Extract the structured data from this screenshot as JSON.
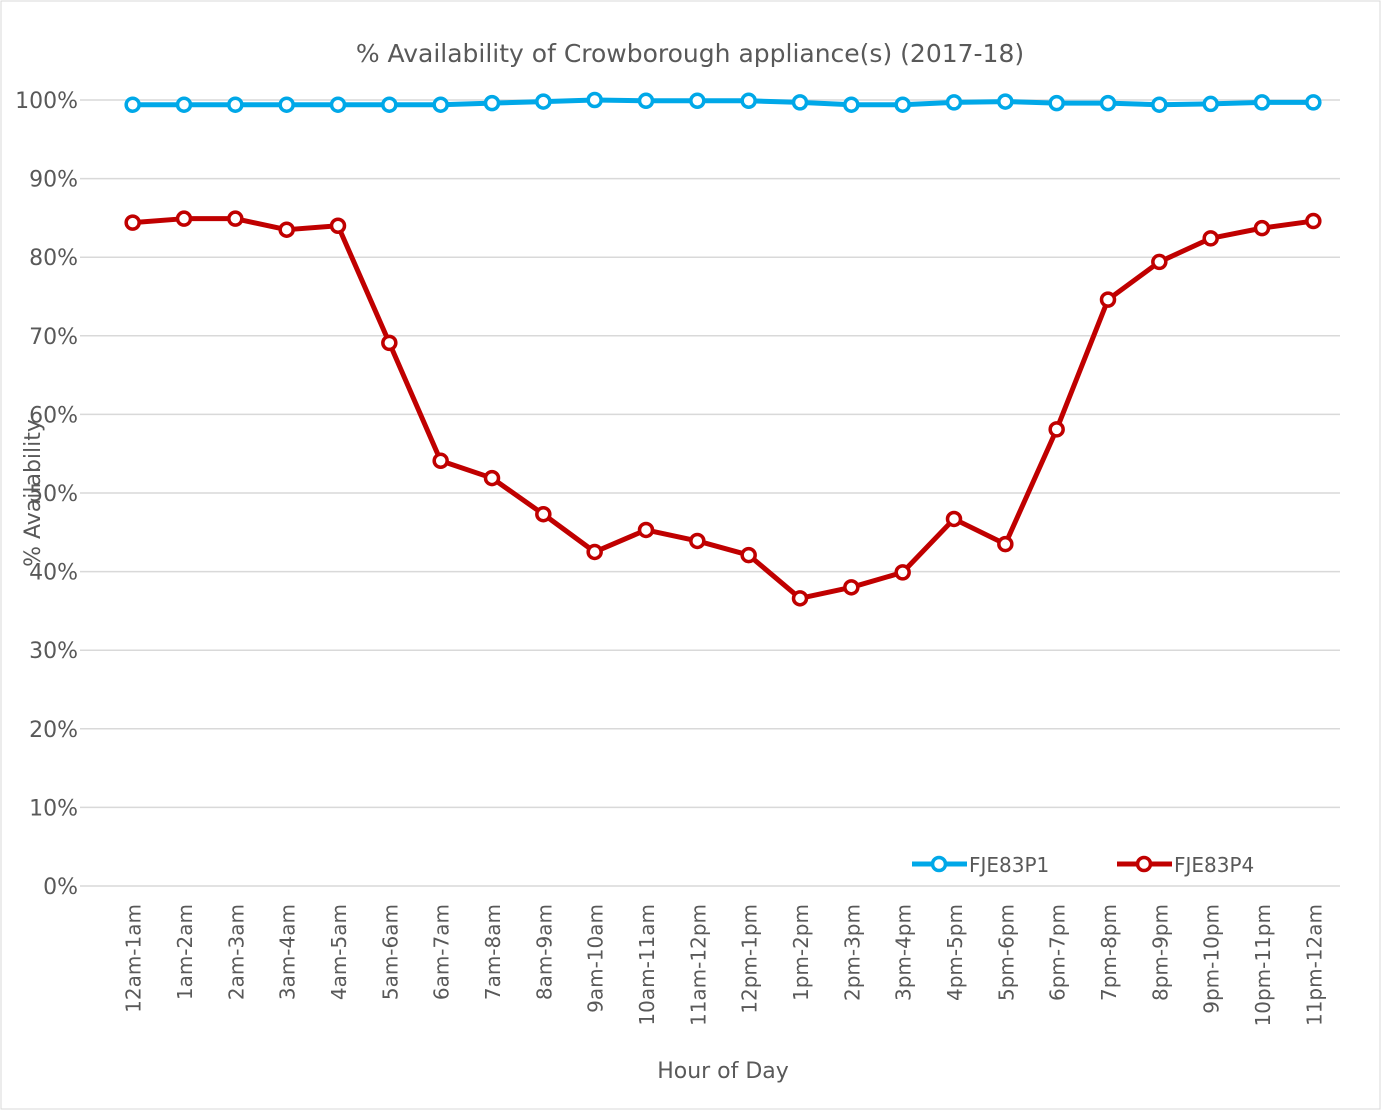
{
  "chart_data": {
    "type": "line",
    "title": "% Availability of Crowborough appliance(s) (2017-18)",
    "x_label": "Hour of Day",
    "y_label": "% Availability",
    "categories": [
      "12am-1am",
      "1am-2am",
      "2am-3am",
      "3am-4am",
      "4am-5am",
      "5am-6am",
      "6am-7am",
      "7am-8am",
      "8am-9am",
      "9am-10am",
      "10am-11am",
      "11am-12pm",
      "12pm-1pm",
      "1pm-2pm",
      "2pm-3pm",
      "3pm-4pm",
      "4pm-5pm",
      "5pm-6pm",
      "6pm-7pm",
      "7pm-8pm",
      "8pm-9pm",
      "9pm-10pm",
      "10pm-11pm",
      "11pm-12am"
    ],
    "series": [
      {
        "name": "FJE83P1",
        "color": "#00a8e8",
        "values": [
          99.4,
          99.4,
          99.4,
          99.4,
          99.4,
          99.4,
          99.4,
          99.6,
          99.8,
          100,
          99.9,
          99.9,
          99.9,
          99.7,
          99.4,
          99.4,
          99.7,
          99.8,
          99.6,
          99.6,
          99.4,
          99.5,
          99.7,
          99.7
        ]
      },
      {
        "name": "FJE83P4",
        "color": "#c00000",
        "values": [
          84.4,
          84.9,
          84.9,
          83.5,
          84.0,
          69.1,
          54.1,
          51.9,
          47.3,
          42.5,
          45.3,
          43.9,
          42.1,
          36.6,
          38.0,
          39.9,
          46.7,
          43.5,
          58.1,
          74.6,
          79.4,
          82.4,
          83.7,
          84.6
        ]
      }
    ],
    "ylim": [
      0,
      100
    ],
    "yticks": [
      {
        "value": 0,
        "label": "0%"
      },
      {
        "value": 10,
        "label": "10%"
      },
      {
        "value": 20,
        "label": "20%"
      },
      {
        "value": 30,
        "label": "30%"
      },
      {
        "value": 40,
        "label": "40%"
      },
      {
        "value": 50,
        "label": "50%"
      },
      {
        "value": 60,
        "label": "60%"
      },
      {
        "value": 70,
        "label": "70%"
      },
      {
        "value": 80,
        "label": "80%"
      },
      {
        "value": 90,
        "label": "90%"
      },
      {
        "value": 100,
        "label": "100%"
      }
    ],
    "grid": true,
    "legend": "lower right"
  }
}
